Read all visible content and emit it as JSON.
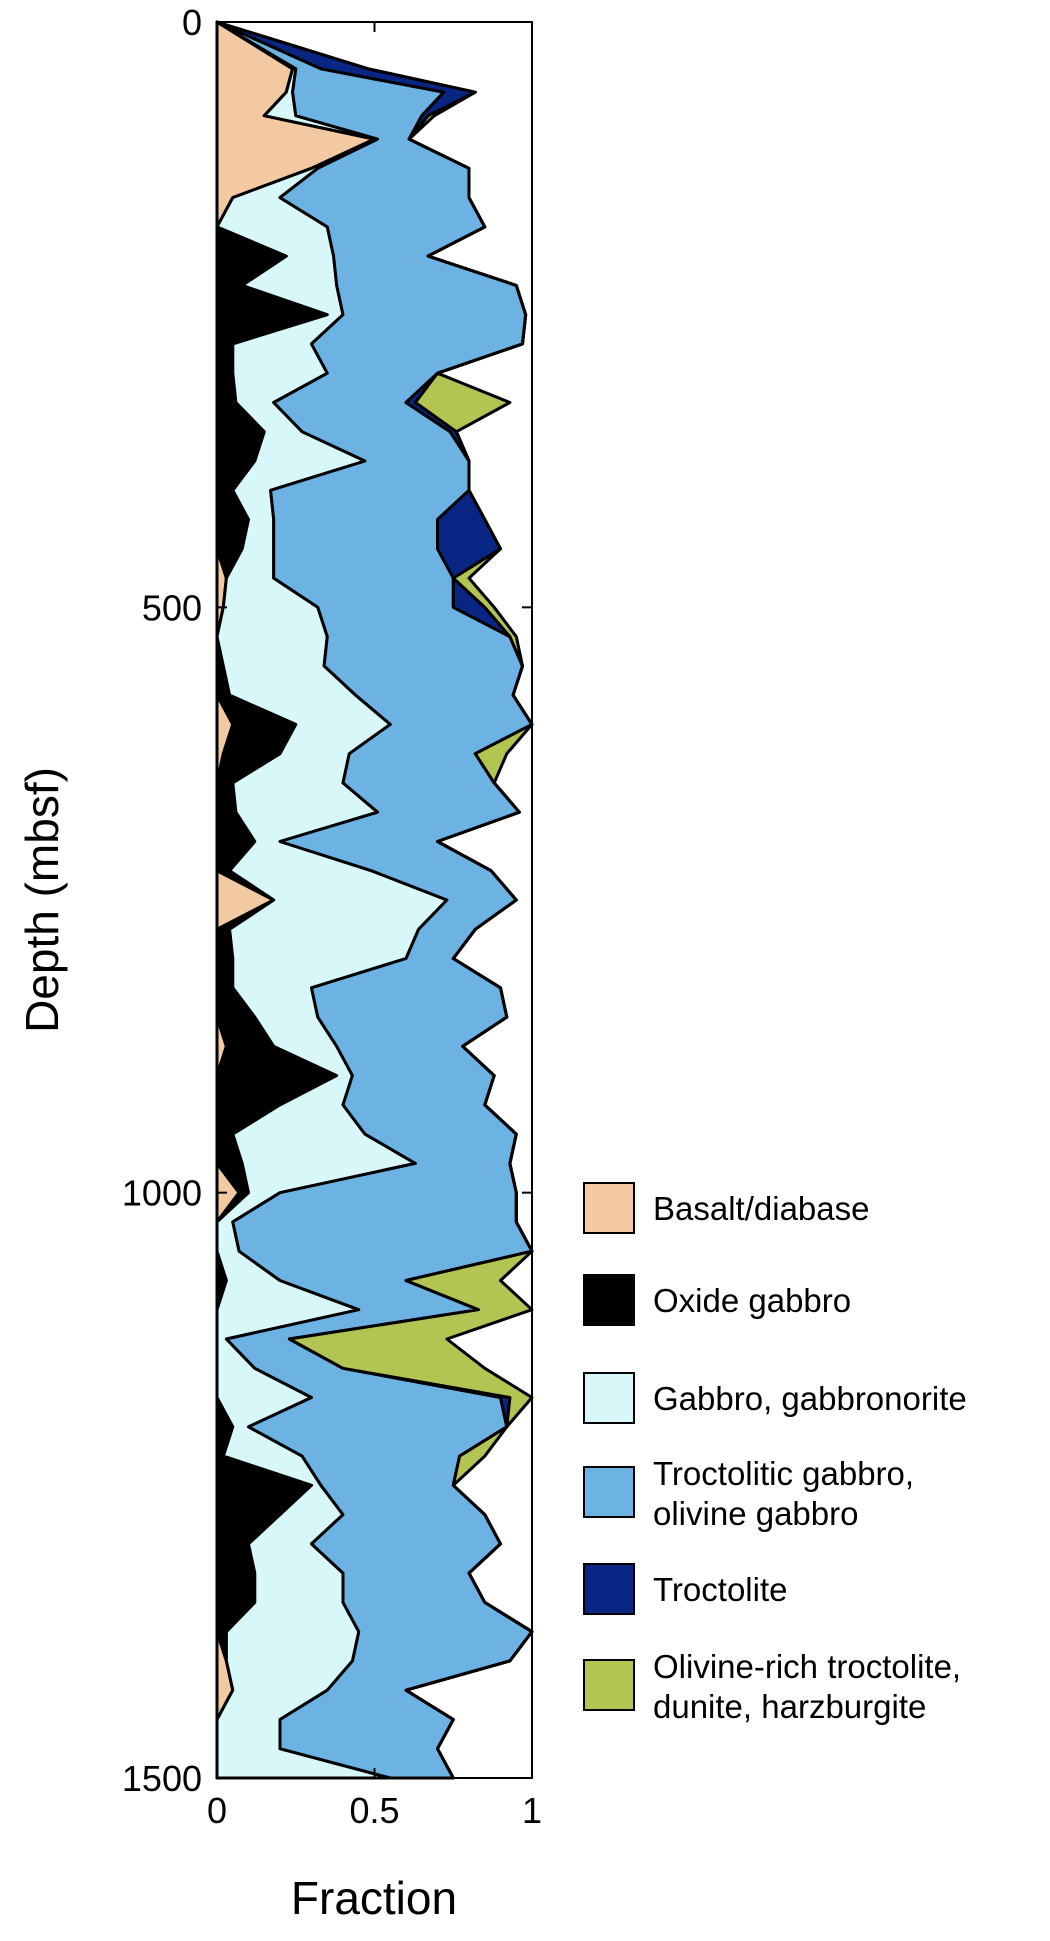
{
  "chart_data": {
    "type": "area",
    "stacked": true,
    "orientation": "vertical-depth",
    "xlabel": "Fraction",
    "ylabel": "Depth (mbsf)",
    "xlim": [
      0,
      1
    ],
    "ylim": [
      1500,
      0
    ],
    "x_ticks": [
      "0",
      "0.5",
      "1"
    ],
    "y_ticks": [
      "0",
      "500",
      "1000",
      "1500"
    ],
    "grid": false,
    "legend_position": "right",
    "series": [
      {
        "name": "Basalt/diabase",
        "color": "#f2c9a1"
      },
      {
        "name": "Oxide gabbro",
        "color": "#000000"
      },
      {
        "name": "Gabbro, gabbronorite",
        "color": "#d8f7f9"
      },
      {
        "name": "Troctolitic gabbro, olivine gabbro",
        "color": "#6cb3e3"
      },
      {
        "name": "Troctolite",
        "color": "#0a2684"
      },
      {
        "name": "Olivine-rich troctolite, dunite, harzburgite",
        "color": "#b2c452"
      }
    ],
    "depth": [
      0,
      40,
      60,
      80,
      100,
      125,
      150,
      175,
      200,
      225,
      250,
      275,
      300,
      325,
      350,
      375,
      400,
      425,
      450,
      475,
      500,
      525,
      550,
      575,
      600,
      625,
      650,
      675,
      700,
      725,
      750,
      775,
      800,
      825,
      850,
      875,
      900,
      925,
      950,
      975,
      1000,
      1025,
      1050,
      1075,
      1100,
      1125,
      1150,
      1175,
      1200,
      1225,
      1250,
      1275,
      1300,
      1325,
      1350,
      1375,
      1400,
      1425,
      1450,
      1475,
      1500
    ],
    "values": {
      "Basalt/diabase": [
        0,
        0.24,
        0.22,
        0.15,
        0.5,
        0.3,
        0.05,
        0,
        0,
        0,
        0,
        0,
        0,
        0,
        0,
        0,
        0,
        0,
        0,
        0.03,
        0.02,
        0,
        0,
        0,
        0.05,
        0.02,
        0,
        0,
        0,
        0,
        0.18,
        0,
        0,
        0,
        0,
        0.03,
        0,
        0,
        0,
        0,
        0.07,
        0,
        0,
        0,
        0,
        0,
        0,
        0,
        0,
        0,
        0,
        0,
        0,
        0,
        0,
        0,
        0.03,
        0.05,
        0,
        0,
        0
      ],
      "Oxide gabbro": [
        0,
        0,
        0,
        0,
        0,
        0,
        0,
        0,
        0.22,
        0.08,
        0.35,
        0.05,
        0.05,
        0.06,
        0.15,
        0.12,
        0.05,
        0.1,
        0.08,
        0,
        0,
        0,
        0.02,
        0.04,
        0.2,
        0.18,
        0.05,
        0.06,
        0.12,
        0.04,
        0,
        0.04,
        0.05,
        0.05,
        0.12,
        0.15,
        0.38,
        0.2,
        0.05,
        0.08,
        0.03,
        0,
        0,
        0.03,
        0,
        0,
        0,
        0,
        0.05,
        0.02,
        0.3,
        0.2,
        0.1,
        0.12,
        0.12,
        0.03,
        0,
        0,
        0,
        0,
        0
      ],
      "Gabbro, gabbronorite": [
        0,
        0.01,
        0.02,
        0.1,
        0.01,
        0.02,
        0.15,
        0.35,
        0.15,
        0.3,
        0.05,
        0.25,
        0.3,
        0.12,
        0.12,
        0.35,
        0.12,
        0.08,
        0.1,
        0.15,
        0.3,
        0.35,
        0.32,
        0.4,
        0.3,
        0.22,
        0.35,
        0.45,
        0.08,
        0.45,
        0.55,
        0.6,
        0.55,
        0.25,
        0.2,
        0.2,
        0.05,
        0.2,
        0.42,
        0.55,
        0.1,
        0.05,
        0.07,
        0.17,
        0.45,
        0.03,
        0.12,
        0.3,
        0.05,
        0.25,
        0.03,
        0.2,
        0.2,
        0.28,
        0.28,
        0.42,
        0.4,
        0.3,
        0.2,
        0.2,
        0.55
      ],
      "Troctolitic gabbro, olivine gabbro": [
        0,
        0.08,
        0.48,
        0.4,
        0.1,
        0.48,
        0.6,
        0.5,
        0.3,
        0.57,
        0.58,
        0.67,
        0.35,
        0.42,
        0.47,
        0.33,
        0.63,
        0.52,
        0.52,
        0.57,
        0.43,
        0.58,
        0.63,
        0.5,
        0.45,
        0.4,
        0.48,
        0.45,
        0.5,
        0.38,
        0.22,
        0.18,
        0.15,
        0.6,
        0.6,
        0.4,
        0.45,
        0.45,
        0.48,
        0.3,
        0.75,
        0.9,
        0.93,
        0.4,
        0.38,
        0.2,
        0.28,
        0.6,
        0.82,
        0.5,
        0.42,
        0.45,
        0.6,
        0.4,
        0.45,
        0.55,
        0.5,
        0.25,
        0.55,
        0.5,
        0.2
      ],
      "Troctolite": [
        0,
        0.15,
        0.1,
        0.02,
        0,
        0,
        0,
        0,
        0,
        0,
        0,
        0,
        0,
        0.03,
        0.02,
        0,
        0,
        0.15,
        0.2,
        0,
        0.1,
        0,
        0,
        0,
        0,
        0,
        0,
        0,
        0,
        0,
        0,
        0,
        0,
        0,
        0,
        0,
        0,
        0,
        0,
        0,
        0,
        0,
        0,
        0,
        0,
        0,
        0,
        0.03,
        0,
        0,
        0,
        0,
        0,
        0,
        0,
        0,
        0,
        0,
        0,
        0,
        0
      ],
      "Olivine-rich troctolite, dunite, harzburgite": [
        0,
        0,
        0,
        0.02,
        0,
        0,
        0,
        0,
        0,
        0,
        0,
        0,
        0,
        0.3,
        0,
        0,
        0,
        0,
        0,
        0.05,
        0.03,
        0.02,
        0,
        0,
        0,
        0.1,
        0,
        0,
        0,
        0,
        0,
        0,
        0,
        0,
        0,
        0,
        0,
        0,
        0,
        0,
        0,
        0,
        0,
        0.3,
        0.17,
        0.5,
        0.45,
        0.07,
        0,
        0.08,
        0,
        0,
        0,
        0,
        0,
        0,
        0,
        0,
        0,
        0,
        0
      ]
    }
  }
}
